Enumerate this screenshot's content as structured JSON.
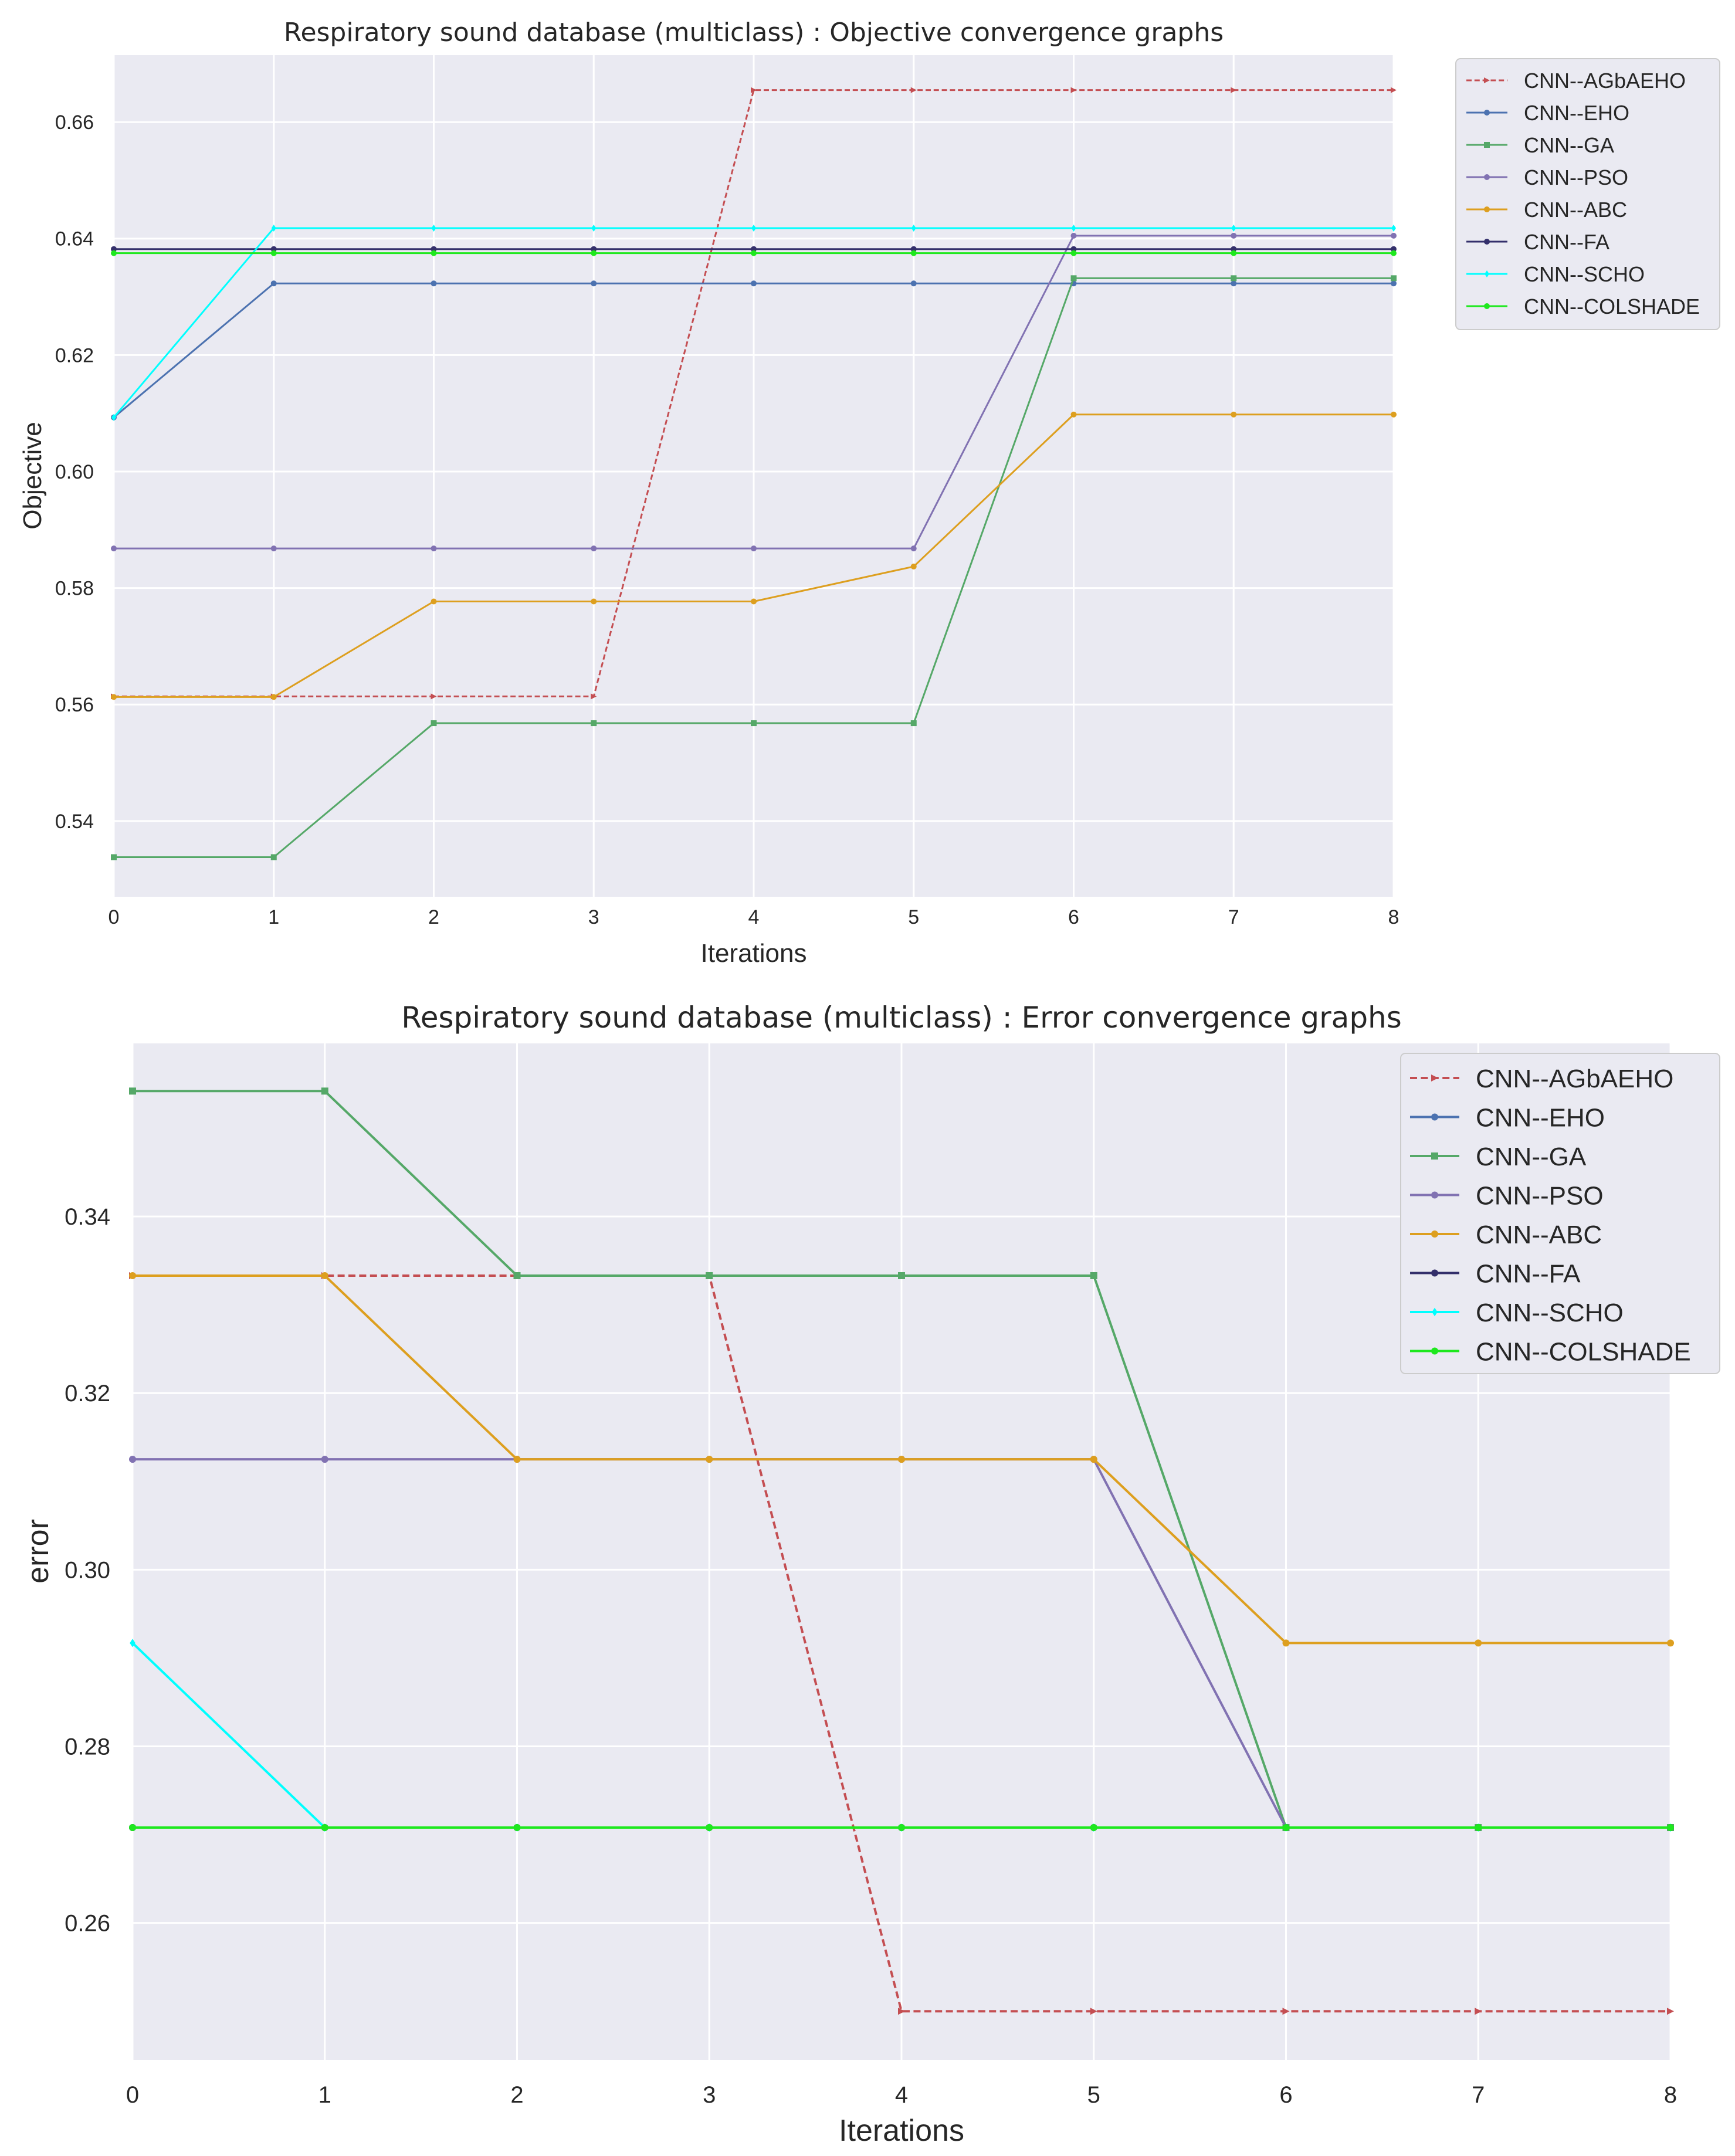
{
  "chart_data": [
    {
      "type": "line",
      "title": "Respiratory sound database (multiclass) : Objective convergence graphs",
      "xlabel": "Iterations",
      "ylabel": "Objective",
      "xlim": [
        0,
        8
      ],
      "ylim": [
        0.527,
        0.6715
      ],
      "xticks": [
        0,
        1,
        2,
        3,
        4,
        5,
        6,
        7,
        8
      ],
      "xtick_labels": [
        "0",
        "1",
        "2",
        "3",
        "4",
        "5",
        "6",
        "7",
        "8"
      ],
      "yticks": [
        0.54,
        0.56,
        0.58,
        0.6,
        0.62,
        0.64,
        0.66
      ],
      "ytick_labels": [
        "0.54",
        "0.56",
        "0.58",
        "0.60",
        "0.62",
        "0.64",
        "0.66"
      ],
      "grid": true,
      "legend": "outside-top-right",
      "x": [
        0,
        1,
        2,
        3,
        4,
        5,
        6,
        7,
        8
      ],
      "series": [
        {
          "name": "CNN--AGbAEHO",
          "color": "#c44e52",
          "dashed": true,
          "marker": "triangle",
          "values": [
            0.5614,
            0.5614,
            0.5614,
            0.5614,
            0.6655,
            0.6655,
            0.6655,
            0.6655,
            0.6655
          ]
        },
        {
          "name": "CNN--EHO",
          "color": "#4c72b0",
          "dashed": false,
          "marker": "circle",
          "values": [
            0.6093,
            0.6323,
            0.6323,
            0.6323,
            0.6323,
            0.6323,
            0.6323,
            0.6323,
            0.6323
          ]
        },
        {
          "name": "CNN--GA",
          "color": "#55a868",
          "dashed": false,
          "marker": "square",
          "values": [
            0.5338,
            0.5338,
            0.5568,
            0.5568,
            0.5568,
            0.5568,
            0.6332,
            0.6332,
            0.6332
          ]
        },
        {
          "name": "CNN--PSO",
          "color": "#8172b2",
          "dashed": false,
          "marker": "circle",
          "values": [
            0.5868,
            0.5868,
            0.5868,
            0.5868,
            0.5868,
            0.5868,
            0.6405,
            0.6405,
            0.6405
          ]
        },
        {
          "name": "CNN--ABC",
          "color": "#dd9f1f",
          "dashed": false,
          "marker": "circle",
          "values": [
            0.5613,
            0.5613,
            0.5777,
            0.5777,
            0.5777,
            0.5837,
            0.6098,
            0.6098,
            0.6098
          ]
        },
        {
          "name": "CNN--FA",
          "color": "#332f6b",
          "dashed": false,
          "marker": "circle",
          "values": [
            0.6382,
            0.6382,
            0.6382,
            0.6382,
            0.6382,
            0.6382,
            0.6382,
            0.6382,
            0.6382
          ]
        },
        {
          "name": "CNN--SCHO",
          "color": "#00ffff",
          "dashed": false,
          "marker": "diamond",
          "values": [
            0.6093,
            0.6418,
            0.6418,
            0.6418,
            0.6418,
            0.6418,
            0.6418,
            0.6418,
            0.6418
          ]
        },
        {
          "name": "CNN--COLSHADE",
          "color": "#1ee81e",
          "dashed": false,
          "marker": "circle",
          "values": [
            0.6375,
            0.6375,
            0.6375,
            0.6375,
            0.6375,
            0.6375,
            0.6375,
            0.6375,
            0.6375
          ]
        }
      ]
    },
    {
      "type": "line",
      "title": "Respiratory sound database (multiclass) : Error convergence graphs",
      "xlabel": "Iterations",
      "ylabel": "error",
      "xlim": [
        0,
        8
      ],
      "ylim": [
        0.2445,
        0.3596
      ],
      "xticks": [
        0,
        1,
        2,
        3,
        4,
        5,
        6,
        7,
        8
      ],
      "xtick_labels": [
        "0",
        "1",
        "2",
        "3",
        "4",
        "5",
        "6",
        "7",
        "8"
      ],
      "yticks": [
        0.26,
        0.28,
        0.3,
        0.32,
        0.34
      ],
      "ytick_labels": [
        "0.26",
        "0.28",
        "0.30",
        "0.32",
        "0.34"
      ],
      "grid": true,
      "legend": "top-right",
      "x": [
        0,
        1,
        2,
        3,
        4,
        5,
        6,
        7,
        8
      ],
      "series": [
        {
          "name": "CNN--AGbAEHO",
          "color": "#c44e52",
          "dashed": true,
          "marker": "triangle",
          "values": [
            0.3333,
            0.3333,
            0.3333,
            0.3333,
            0.25,
            0.25,
            0.25,
            0.25,
            0.25
          ]
        },
        {
          "name": "CNN--EHO",
          "color": "#4c72b0",
          "dashed": false,
          "marker": "circle",
          "values": [
            0.2708,
            0.2708,
            0.2708,
            0.2708,
            0.2708,
            0.2708,
            0.2708,
            0.2708,
            0.2708
          ]
        },
        {
          "name": "CNN--GA",
          "color": "#55a868",
          "dashed": false,
          "marker": "square",
          "values": [
            0.3542,
            0.3542,
            0.3333,
            0.3333,
            0.3333,
            0.3333,
            0.2708,
            0.2708,
            0.2708
          ]
        },
        {
          "name": "CNN--PSO",
          "color": "#8172b2",
          "dashed": false,
          "marker": "circle",
          "values": [
            0.3125,
            0.3125,
            0.3125,
            0.3125,
            0.3125,
            0.3125,
            0.2708,
            0.2708,
            0.2708
          ]
        },
        {
          "name": "CNN--ABC",
          "color": "#dd9f1f",
          "dashed": false,
          "marker": "circle",
          "values": [
            0.3333,
            0.3333,
            0.3125,
            0.3125,
            0.3125,
            0.3125,
            0.2917,
            0.2917,
            0.2917
          ]
        },
        {
          "name": "CNN--FA",
          "color": "#332f6b",
          "dashed": false,
          "marker": "circle",
          "values": [
            0.2708,
            0.2708,
            0.2708,
            0.2708,
            0.2708,
            0.2708,
            0.2708,
            0.2708,
            0.2708
          ]
        },
        {
          "name": "CNN--SCHO",
          "color": "#00ffff",
          "dashed": false,
          "marker": "diamond",
          "values": [
            0.2917,
            0.2708,
            0.2708,
            0.2708,
            0.2708,
            0.2708,
            0.2708,
            0.2708,
            0.2708
          ]
        },
        {
          "name": "CNN--COLSHADE",
          "color": "#1ee81e",
          "dashed": false,
          "marker": "circle",
          "values": [
            0.2708,
            0.2708,
            0.2708,
            0.2708,
            0.2708,
            0.2708,
            0.2708,
            0.2708,
            0.2708
          ]
        }
      ]
    }
  ]
}
